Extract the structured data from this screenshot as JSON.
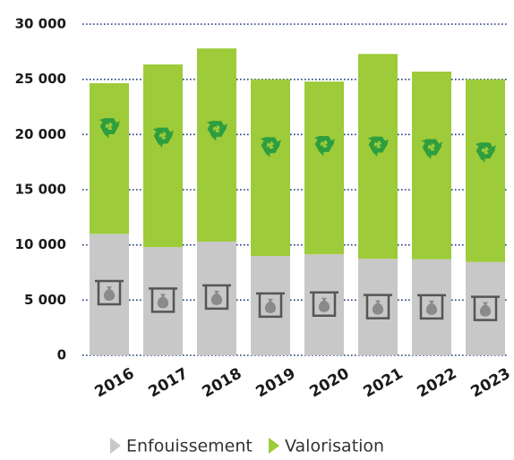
{
  "chart_data": {
    "type": "stacked_bar",
    "categories": [
      "2016",
      "2017",
      "2018",
      "2019",
      "2020",
      "2021",
      "2022",
      "2023"
    ],
    "series": [
      {
        "name": "Enfouissement",
        "color": "#c8c8c8",
        "values": [
          11000,
          9800,
          10300,
          9000,
          9150,
          8750,
          8700,
          8450
        ]
      },
      {
        "name": "Valorisation",
        "color": "#9dcb3a",
        "values": [
          13650,
          16550,
          17500,
          16000,
          15650,
          18550,
          17000,
          16550
        ]
      }
    ],
    "ylim": [
      0,
      30000
    ],
    "yticks": [
      0,
      {
        "value": 5000,
        "label": "5 000"
      },
      {
        "value": 10000,
        "label": "10 000"
      },
      {
        "value": 15000,
        "label": "15 000"
      },
      {
        "value": 20000,
        "label": "20 000"
      },
      {
        "value": 25000,
        "label": "25 000"
      },
      {
        "value": 30000,
        "label": "30 000"
      }
    ],
    "grid": true,
    "legend": "bottom"
  }
}
